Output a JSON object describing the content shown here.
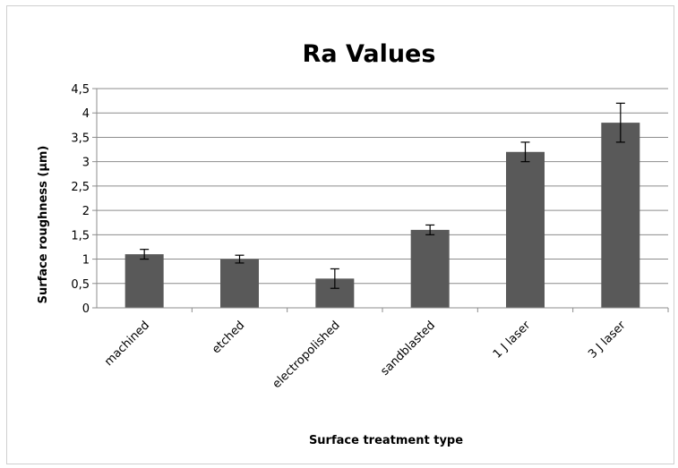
{
  "chart_data": {
    "type": "bar",
    "title": "Ra Values",
    "xlabel": "Surface treatment type",
    "ylabel": "Surface roughness (µm)",
    "categories": [
      "machined",
      "etched",
      "electropolished",
      "sandblasted",
      "1 J laser",
      "3 J laser"
    ],
    "values": [
      1.1,
      1.0,
      0.6,
      1.6,
      3.2,
      3.8
    ],
    "errors": [
      0.1,
      0.08,
      0.2,
      0.1,
      0.2,
      0.4
    ],
    "ylim": [
      0,
      4.5
    ],
    "yticks": [
      "0",
      "0,5",
      "1",
      "1,5",
      "2",
      "2,5",
      "3",
      "3,5",
      "4",
      "4,5"
    ],
    "grid": true,
    "bar_color": "#595959"
  }
}
